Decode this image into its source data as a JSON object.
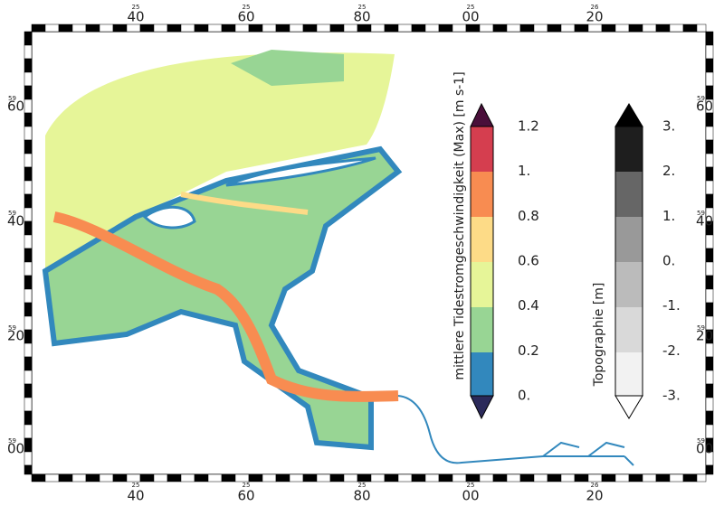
{
  "map": {
    "top_ticks": [
      {
        "minor": "25",
        "major": "40"
      },
      {
        "minor": "25",
        "major": "60"
      },
      {
        "minor": "25",
        "major": "80"
      },
      {
        "minor": "25",
        "major": "00"
      },
      {
        "minor": "26",
        "major": "20"
      }
    ],
    "bottom_ticks": [
      {
        "minor": "25",
        "major": "40"
      },
      {
        "minor": "25",
        "major": "60"
      },
      {
        "minor": "25",
        "major": "80"
      },
      {
        "minor": "25",
        "major": "00"
      },
      {
        "minor": "26",
        "major": "20"
      }
    ],
    "left_ticks": [
      {
        "minor": "59",
        "major": "60"
      },
      {
        "minor": "59",
        "major": "40"
      },
      {
        "minor": "59",
        "major": "20"
      },
      {
        "minor": "59",
        "major": "00"
      }
    ],
    "right_ticks": [
      {
        "minor": "59",
        "major": "60"
      },
      {
        "minor": "59",
        "major": "40"
      },
      {
        "minor": "59",
        "major": "20"
      },
      {
        "minor": "59",
        "major": "00"
      }
    ]
  },
  "colorbar_speed": {
    "title": "mittlere Tidestromgeschwindigkeit (Max) [m s-1]",
    "labels": [
      "0.",
      "0.2",
      "0.4",
      "0.6",
      "0.8",
      "1.",
      "1.2"
    ]
  },
  "colorbar_topo": {
    "title": "Topographie [m]",
    "labels": [
      "-3.",
      "-2.",
      "-1.",
      "0.",
      "1.",
      "2.",
      "3."
    ]
  }
}
